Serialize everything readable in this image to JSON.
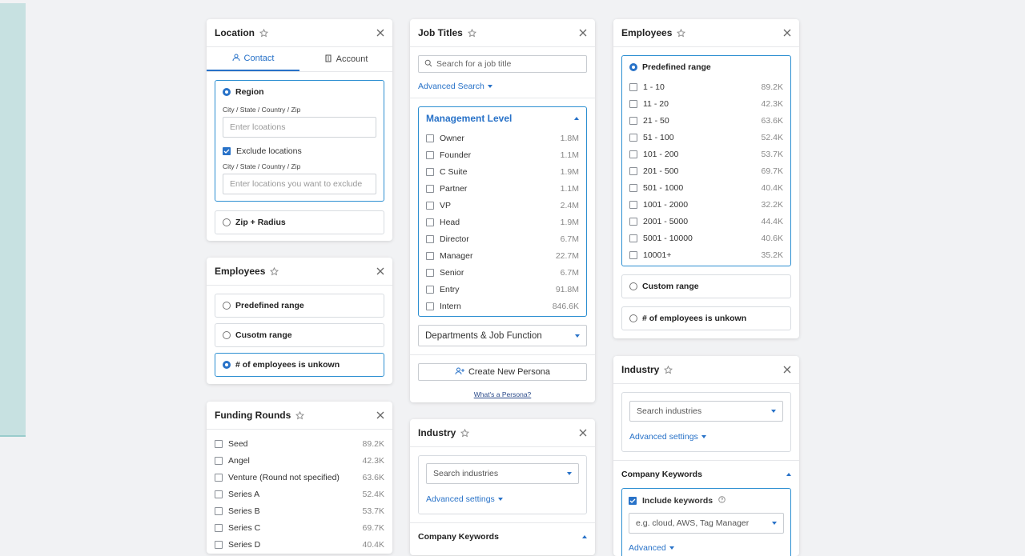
{
  "location": {
    "title": "Location",
    "tabs": {
      "contact": "Contact",
      "account": "Account"
    },
    "region": "Region",
    "field_label": "City / State / Country / Zip",
    "enter_placeholder": "Enter lcoations",
    "exclude": "Exclude locations",
    "field_label2": "City / State / Country / Zip",
    "exclude_placeholder": "Enter locations you want to exclude",
    "zip_radius": "Zip + Radius"
  },
  "employees_left": {
    "title": "Employees",
    "predefined": "Predefined range",
    "custom": "Cusotm range",
    "unknown": "# of employees is unkown"
  },
  "funding": {
    "title": "Funding Rounds",
    "items": [
      {
        "label": "Seed",
        "count": "89.2K"
      },
      {
        "label": "Angel",
        "count": "42.3K"
      },
      {
        "label": "Venture (Round not specified)",
        "count": "63.6K"
      },
      {
        "label": "Series A",
        "count": "52.4K"
      },
      {
        "label": "Series B",
        "count": "53.7K"
      },
      {
        "label": "Series C",
        "count": "69.7K"
      },
      {
        "label": "Series D",
        "count": "40.4K"
      }
    ]
  },
  "job_titles": {
    "title": "Job Titles",
    "search_placeholder": "Search for a job title",
    "advanced_search": "Advanced Search",
    "management_level": "Management Level",
    "levels": [
      {
        "label": "Owner",
        "count": "1.8M"
      },
      {
        "label": "Founder",
        "count": "1.1M"
      },
      {
        "label": "C Suite",
        "count": "1.9M"
      },
      {
        "label": "Partner",
        "count": "1.1M"
      },
      {
        "label": "VP",
        "count": "2.4M"
      },
      {
        "label": "Head",
        "count": "1.9M"
      },
      {
        "label": "Director",
        "count": "6.7M"
      },
      {
        "label": "Manager",
        "count": "22.7M"
      },
      {
        "label": "Senior",
        "count": "6.7M"
      },
      {
        "label": "Entry",
        "count": "91.8M"
      },
      {
        "label": "Intern",
        "count": "846.6K"
      }
    ],
    "departments": "Departments & Job Function",
    "create_persona": "Create New Persona",
    "whats_persona": "What's a Persona?"
  },
  "industry_mid": {
    "title": "Industry",
    "search_placeholder": "Search industries",
    "advanced_settings": "Advanced settings",
    "company_keywords": "Company Keywords"
  },
  "employees_right": {
    "title": "Employees",
    "predefined": "Predefined range",
    "ranges": [
      {
        "label": "1 - 10",
        "count": "89.2K"
      },
      {
        "label": "11 - 20",
        "count": "42.3K"
      },
      {
        "label": "21 - 50",
        "count": "63.6K"
      },
      {
        "label": "51 - 100",
        "count": "52.4K"
      },
      {
        "label": "101 - 200",
        "count": "53.7K"
      },
      {
        "label": "201 - 500",
        "count": "69.7K"
      },
      {
        "label": "501 - 1000",
        "count": "40.4K"
      },
      {
        "label": "1001 - 2000",
        "count": "32.2K"
      },
      {
        "label": "2001 - 5000",
        "count": "44.4K"
      },
      {
        "label": "5001 - 10000",
        "count": "40.6K"
      },
      {
        "label": "10001+",
        "count": "35.2K"
      }
    ],
    "custom": "Custom range",
    "unknown": "# of employees is unkown"
  },
  "industry_right": {
    "title": "Industry",
    "search_placeholder": "Search industries",
    "advanced_settings": "Advanced settings",
    "company_keywords": "Company Keywords",
    "include_keywords": "Include keywords",
    "keywords_placeholder": "e.g. cloud, AWS, Tag Manager",
    "advanced": "Advanced"
  },
  "colors": {
    "accent": "#2872c8",
    "side_panel": "#c7e1e1"
  },
  "icons": [
    "star-icon",
    "close-icon",
    "user-icon",
    "building-icon",
    "search-icon",
    "user-plus-icon",
    "help-icon",
    "check-icon"
  ]
}
